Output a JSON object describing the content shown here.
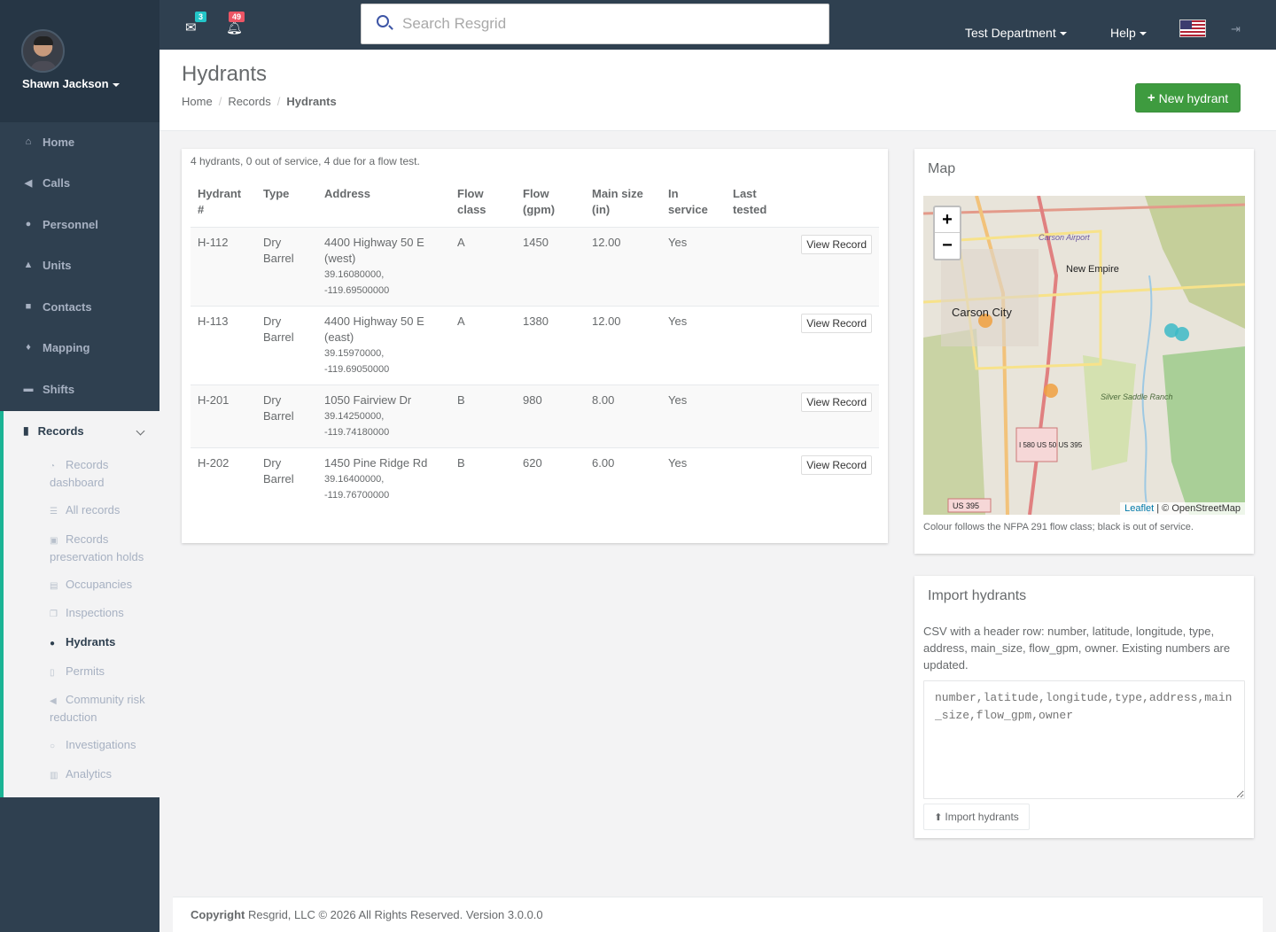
{
  "user": {
    "name": "Shawn Jackson"
  },
  "sidebar": {
    "items": [
      {
        "label": "Home",
        "icon": "home-icon"
      },
      {
        "label": "Calls",
        "icon": "bullhorn-icon"
      },
      {
        "label": "Personnel",
        "icon": "user-icon"
      },
      {
        "label": "Units",
        "icon": "truck-icon"
      },
      {
        "label": "Contacts",
        "icon": "address-book-icon"
      },
      {
        "label": "Mapping",
        "icon": "map-marker-icon"
      },
      {
        "label": "Shifts",
        "icon": "briefcase-icon"
      }
    ],
    "records": {
      "label": "Records",
      "icon": "file-icon",
      "sub": [
        {
          "label": "Records dashboard",
          "icon": "dashboard-icon"
        },
        {
          "label": "All records",
          "icon": "list-icon"
        },
        {
          "label": "Records preservation holds",
          "icon": "lock-icon"
        },
        {
          "label": "Occupancies",
          "icon": "building-icon"
        },
        {
          "label": "Inspections",
          "icon": "copy-icon"
        },
        {
          "label": "Hydrants",
          "icon": "tint-icon"
        },
        {
          "label": "Permits",
          "icon": "document-icon"
        },
        {
          "label": "Community risk reduction",
          "icon": "bullhorn-icon"
        },
        {
          "label": "Investigations",
          "icon": "search-icon"
        },
        {
          "label": "Analytics",
          "icon": "bar-chart-icon"
        }
      ]
    }
  },
  "topbar": {
    "messages_count": "3",
    "notifications_count": "49",
    "search_placeholder": "Search Resgrid",
    "department": "Test Department",
    "help": "Help",
    "language_flag": "us-flag-icon",
    "badge_colors": {
      "messages": "#23c6c8",
      "notifications": "#ed5565"
    }
  },
  "page": {
    "title": "Hydrants",
    "breadcrumb": [
      "Home",
      "Records",
      "Hydrants"
    ],
    "new_button": "New hydrant"
  },
  "hydrants": {
    "summary": "4 hydrants, 0 out of service, 4 due for a flow test.",
    "columns": [
      "Hydrant #",
      "Type",
      "Address",
      "Flow class",
      "Flow (gpm)",
      "Main size (in)",
      "In service",
      "Last tested"
    ],
    "action_label": "View Record",
    "rows": [
      {
        "number": "H-112",
        "type": "Dry Barrel",
        "address": "4400 Highway 50 E (west)",
        "lat": "39.16080000,",
        "lng": "-119.69500000",
        "flow_class": "A",
        "flow": "1450",
        "main": "12.00",
        "in_service": "Yes",
        "last_tested": ""
      },
      {
        "number": "H-113",
        "type": "Dry Barrel",
        "address": "4400 Highway 50 E (east)",
        "lat": "39.15970000,",
        "lng": "-119.69050000",
        "flow_class": "A",
        "flow": "1380",
        "main": "12.00",
        "in_service": "Yes",
        "last_tested": ""
      },
      {
        "number": "H-201",
        "type": "Dry Barrel",
        "address": "1050 Fairview Dr",
        "lat": "39.14250000,",
        "lng": "-119.74180000",
        "flow_class": "B",
        "flow": "980",
        "main": "8.00",
        "in_service": "Yes",
        "last_tested": ""
      },
      {
        "number": "H-202",
        "type": "Dry Barrel",
        "address": "1450 Pine Ridge Rd",
        "lat": "39.16400000,",
        "lng": "-119.76700000",
        "flow_class": "B",
        "flow": "620",
        "main": "6.00",
        "in_service": "Yes",
        "last_tested": ""
      }
    ]
  },
  "map": {
    "title": "Map",
    "zoom_in": "+",
    "zoom_out": "−",
    "labels": {
      "city": "Carson City",
      "airport": "Carson Airport",
      "empire": "New Empire",
      "ranch": "Silver Saddle Ranch",
      "shield": "I 580 US 50 US 395",
      "us395": "US 395"
    },
    "attribution_link": "Leaflet",
    "attribution_text": "| © OpenStreetMap",
    "note": "Colour follows the NFPA 291 flow class; black is out of service.",
    "marker_colors": {
      "class_a": "#3cbac7",
      "class_b": "#f0a040"
    }
  },
  "import": {
    "title": "Import hydrants",
    "description": "CSV with a header row: number, latitude, longitude, type, address, main_size, flow_gpm, owner. Existing numbers are updated.",
    "placeholder": "number,latitude,longitude,type,address,main_size,flow_gpm,owner",
    "button": "Import hydrants"
  },
  "footer": {
    "copyright": "Copyright",
    "text": "Resgrid, LLC © 2026 All Rights Reserved.",
    "version": "Version 3.0.0.0"
  }
}
